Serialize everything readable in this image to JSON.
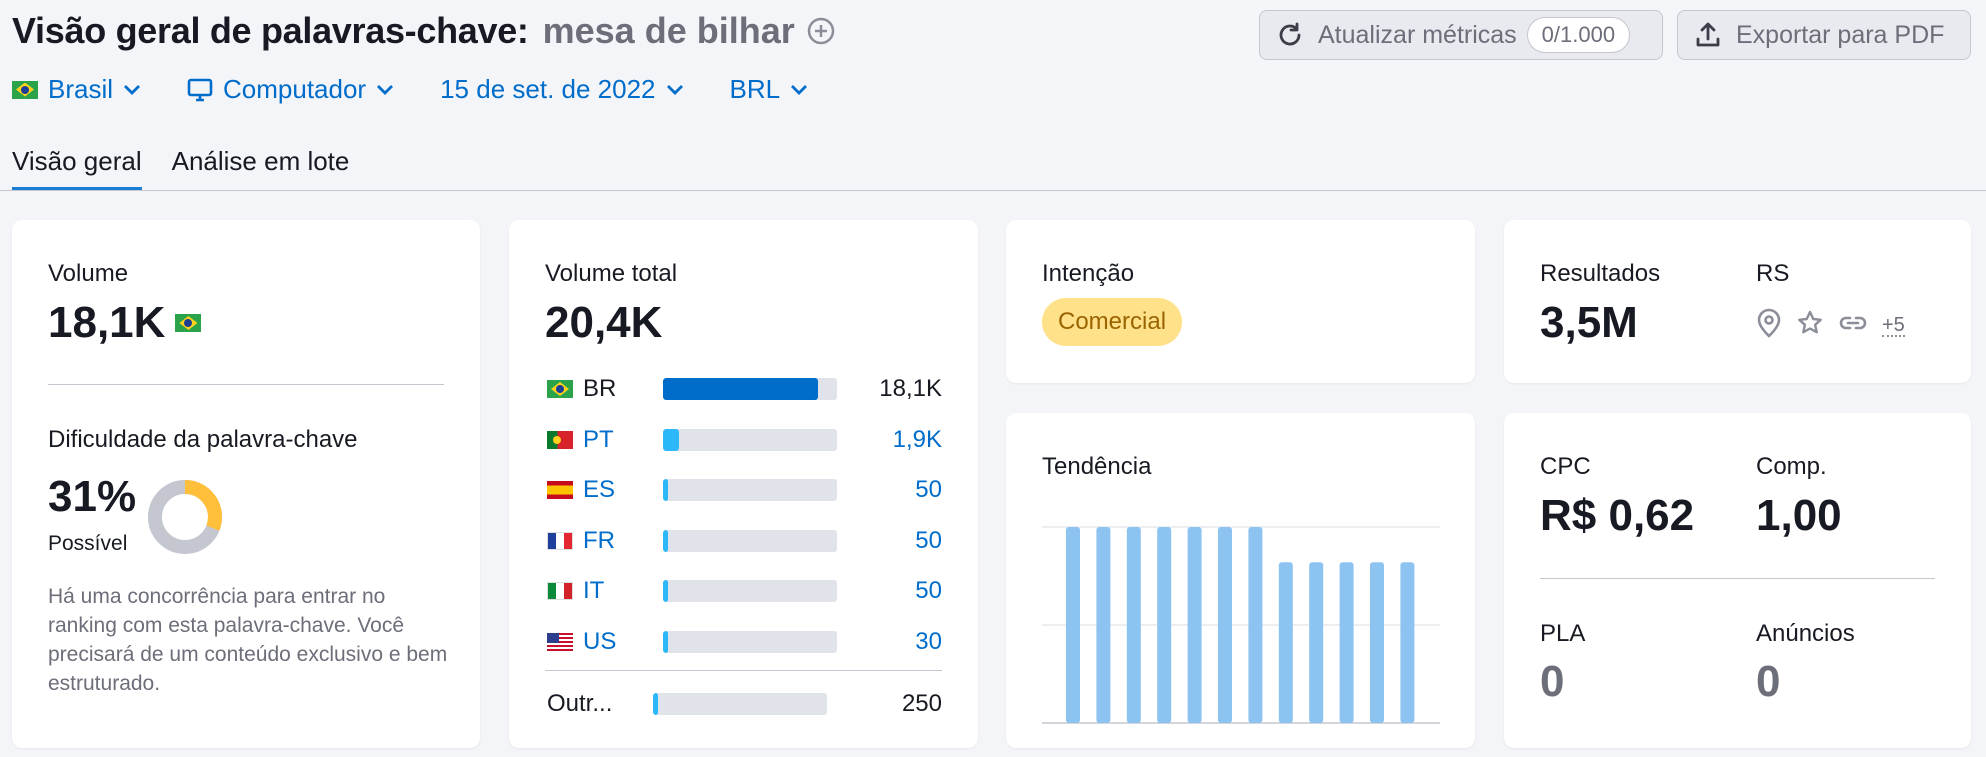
{
  "header": {
    "title": "Visão geral de palavras-chave:",
    "keyword": "mesa de bilhar"
  },
  "filters": {
    "country": "Brasil",
    "device": "Computador",
    "date": "15 de set. de 2022",
    "currency": "BRL"
  },
  "actions": {
    "refresh_label": "Atualizar métricas",
    "refresh_counter": "0/1.000",
    "export_label": "Exportar para PDF"
  },
  "tabs": [
    {
      "label": "Visão geral",
      "active": true
    },
    {
      "label": "Análise em lote",
      "active": false
    }
  ],
  "volume": {
    "label": "Volume",
    "value": "18,1K",
    "flag": "br"
  },
  "difficulty": {
    "label": "Dificuldade da palavra-chave",
    "percent_text": "31%",
    "percent": 31,
    "level": "Possível",
    "description": "Há uma concorrência para entrar no ranking com esta palavra-chave. Você precisará de um conteúdo exclusivo e bem estruturado.",
    "color": "#ffbf3a"
  },
  "total_volume": {
    "label": "Volume total",
    "value": "20,4K",
    "countries": [
      {
        "code": "BR",
        "value": "18,1K",
        "fraction": 0.89,
        "flag": "br",
        "link": false
      },
      {
        "code": "PT",
        "value": "1,9K",
        "fraction": 0.09,
        "flag": "pt",
        "link": true
      },
      {
        "code": "ES",
        "value": "50",
        "fraction": 0.025,
        "flag": "es",
        "link": true
      },
      {
        "code": "FR",
        "value": "50",
        "fraction": 0.025,
        "flag": "fr",
        "link": true
      },
      {
        "code": "IT",
        "value": "50",
        "fraction": 0.025,
        "flag": "it",
        "link": true
      },
      {
        "code": "US",
        "value": "30",
        "fraction": 0.02,
        "flag": "us",
        "link": true
      }
    ],
    "others": {
      "code": "Outr...",
      "value": "250",
      "fraction": 0.025
    }
  },
  "intent": {
    "label": "Intenção",
    "value": "Comercial"
  },
  "results": {
    "label": "Resultados",
    "value": "3,5M",
    "serp_label": "RS",
    "serp_icons": [
      "location-pin-icon",
      "star-icon",
      "link-icon"
    ],
    "serp_more": "+5"
  },
  "trend": {
    "label": "Tendência",
    "values": [
      1.0,
      1.0,
      1.0,
      1.0,
      1.0,
      1.0,
      1.0,
      0.82,
      0.82,
      0.82,
      0.82,
      0.82
    ],
    "bar_color": "#8cc3f1"
  },
  "cpc": {
    "cpc_label": "CPC",
    "cpc_value": "R$ 0,62",
    "comp_label": "Comp.",
    "comp_value": "1,00",
    "pla_label": "PLA",
    "pla_value": "0",
    "ads_label": "Anúncios",
    "ads_value": "0"
  },
  "colors": {
    "link": "#006dca",
    "bar_primary": "#006dca",
    "bar_secondary": "#2bb7f8",
    "track": "#e1e3ea"
  }
}
